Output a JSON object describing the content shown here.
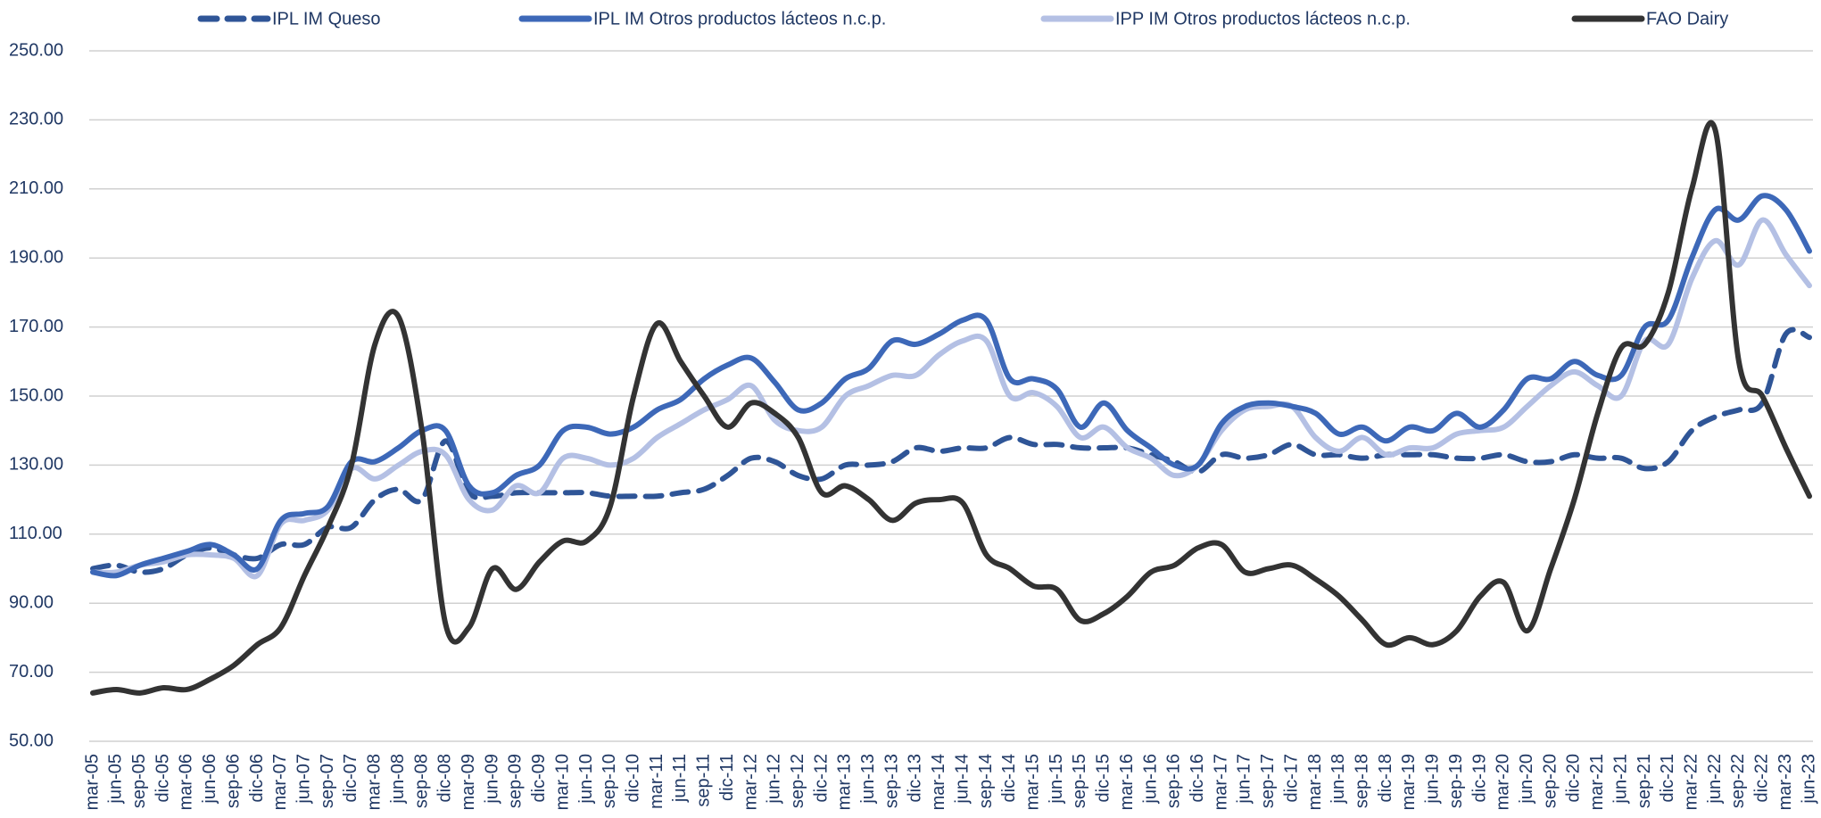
{
  "chart_data": {
    "type": "line",
    "categories": [
      "mar-05",
      "jun-05",
      "sep-05",
      "dic-05",
      "mar-06",
      "jun-06",
      "sep-06",
      "dic-06",
      "mar-07",
      "jun-07",
      "sep-07",
      "dic-07",
      "mar-08",
      "jun-08",
      "sep-08",
      "dic-08",
      "mar-09",
      "jun-09",
      "sep-09",
      "dic-09",
      "mar-10",
      "jun-10",
      "sep-10",
      "dic-10",
      "mar-11",
      "jun-11",
      "sep-11",
      "dic-11",
      "mar-12",
      "jun-12",
      "sep-12",
      "dic-12",
      "mar-13",
      "jun-13",
      "sep-13",
      "dic-13",
      "mar-14",
      "jun-14",
      "sep-14",
      "dic-14",
      "mar-15",
      "jun-15",
      "sep-15",
      "dic-15",
      "mar-16",
      "jun-16",
      "sep-16",
      "dic-16",
      "mar-17",
      "jun-17",
      "sep-17",
      "dic-17",
      "mar-18",
      "jun-18",
      "sep-18",
      "dic-18",
      "mar-19",
      "jun-19",
      "sep-19",
      "dic-19",
      "mar-20",
      "jun-20",
      "sep-20",
      "dic-20",
      "mar-21",
      "jun-21",
      "sep-21",
      "dic-21",
      "mar-22",
      "jun-22",
      "sep-22",
      "dic-22",
      "mar-23",
      "jun-23"
    ],
    "series": [
      {
        "name": "IPL IM Queso",
        "color": "#2f5597",
        "dash": true,
        "values": [
          100,
          101,
          99,
          100,
          104,
          106,
          104,
          103,
          107,
          107,
          112,
          112,
          120,
          123,
          120,
          137,
          122,
          121,
          122,
          122,
          122,
          122,
          121,
          121,
          121,
          122,
          123,
          127,
          132,
          131,
          127,
          126,
          130,
          130,
          131,
          135,
          134,
          135,
          135,
          138,
          136,
          136,
          135,
          135,
          135,
          133,
          131,
          128,
          133,
          132,
          133,
          136,
          133,
          133,
          132,
          133,
          133,
          133,
          132,
          132,
          133,
          131,
          131,
          133,
          132,
          132,
          129,
          131,
          140,
          144,
          146,
          148,
          168,
          167
        ]
      },
      {
        "name": "IPL IM Otros productos lácteos n.c.p.",
        "color": "#3d68b8",
        "dash": false,
        "values": [
          99,
          98,
          101,
          103,
          105,
          107,
          104,
          100,
          114,
          116,
          118,
          131,
          131,
          135,
          140,
          140,
          124,
          122,
          127,
          130,
          140,
          141,
          139,
          141,
          146,
          149,
          155,
          159,
          161,
          154,
          146,
          148,
          155,
          158,
          166,
          165,
          168,
          172,
          172,
          155,
          155,
          152,
          141,
          148,
          140,
          135,
          130,
          130,
          142,
          147,
          148,
          147,
          145,
          139,
          141,
          137,
          141,
          140,
          145,
          141,
          146,
          155,
          155,
          160,
          156,
          156,
          170,
          172,
          190,
          204,
          201,
          208,
          204,
          192
        ]
      },
      {
        "name": "IPP IM Otros productos lácteos n.c.p.",
        "color": "#b4c0e4",
        "dash": false,
        "values": [
          99,
          99,
          101,
          102,
          104,
          104,
          103,
          98,
          113,
          114,
          117,
          129,
          126,
          130,
          134,
          133,
          120,
          117,
          124,
          122,
          132,
          132,
          130,
          132,
          138,
          142,
          146,
          149,
          153,
          143,
          140,
          141,
          150,
          153,
          156,
          156,
          162,
          166,
          166,
          150,
          151,
          147,
          138,
          141,
          135,
          132,
          127,
          130,
          140,
          146,
          147,
          147,
          138,
          134,
          138,
          133,
          135,
          135,
          139,
          140,
          141,
          147,
          153,
          157,
          153,
          150,
          166,
          165,
          184,
          195,
          188,
          201,
          191,
          182
        ]
      },
      {
        "name": "FAO Dairy",
        "color": "#333333",
        "dash": false,
        "values": [
          64,
          65,
          64,
          65.5,
          65,
          68,
          72,
          78,
          83,
          98,
          112,
          130,
          165,
          173,
          140,
          84,
          83,
          100,
          94,
          102,
          108,
          108,
          118,
          150,
          171,
          160,
          150,
          141,
          148,
          145,
          138,
          122,
          124,
          120,
          114,
          119,
          120,
          119,
          104,
          100,
          95,
          94,
          85,
          87,
          92,
          99,
          101,
          106,
          107,
          99,
          100,
          101,
          97,
          92,
          85,
          78,
          80,
          78,
          82,
          92,
          96,
          82,
          100,
          120,
          145,
          164,
          165,
          180,
          210,
          227,
          160,
          150,
          135,
          121
        ]
      }
    ],
    "ylim": [
      50,
      250
    ],
    "yticks": [
      {
        "value": 50,
        "label": "50.00"
      },
      {
        "value": 70,
        "label": "70.00"
      },
      {
        "value": 90,
        "label": "90.00"
      },
      {
        "value": 110,
        "label": "110.00"
      },
      {
        "value": 130,
        "label": "130.00"
      },
      {
        "value": 150,
        "label": "150.00"
      },
      {
        "value": 170,
        "label": "170.00"
      },
      {
        "value": 190,
        "label": "190.00"
      },
      {
        "value": 210,
        "label": "210.00"
      },
      {
        "value": 230,
        "label": "230.00"
      },
      {
        "value": 250,
        "label": "250.00"
      }
    ],
    "grid": true,
    "legend": "top"
  }
}
